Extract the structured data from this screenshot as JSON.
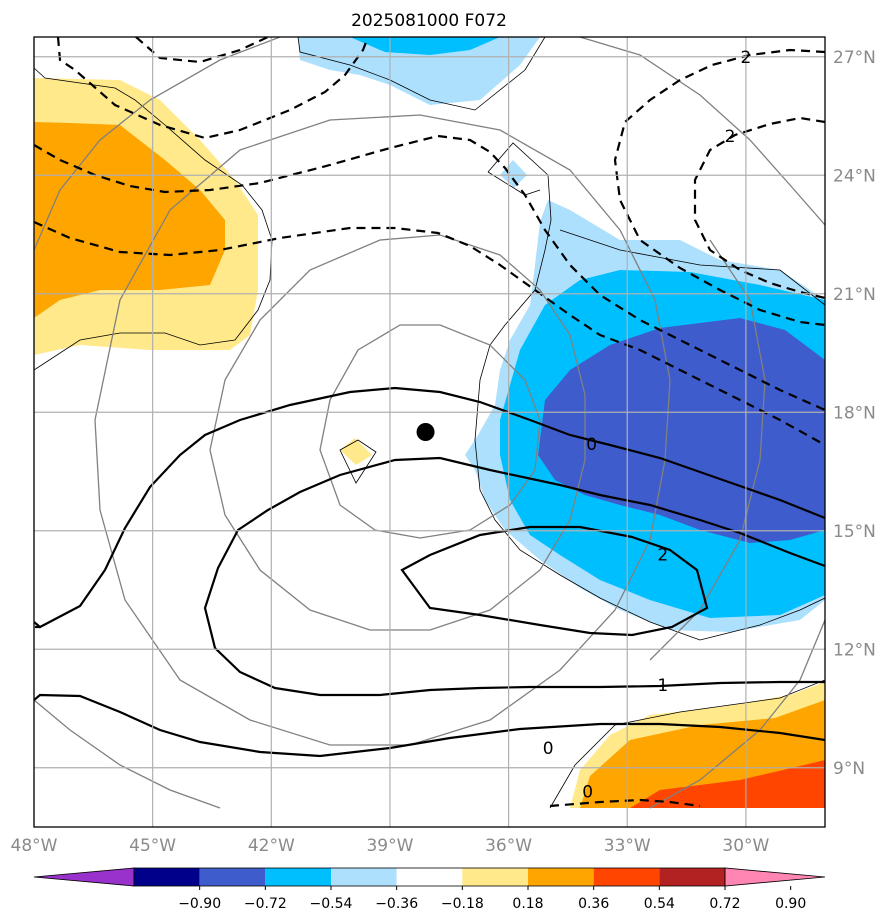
{
  "chart_data": {
    "type": "contour-map",
    "title": "2025081000 F072",
    "map": {
      "lon_range": [
        -48,
        -28
      ],
      "lat_range": [
        7.5,
        27.5
      ],
      "lon_ticks": [
        {
          "value": -48,
          "label": "48°W"
        },
        {
          "value": -45,
          "label": "45°W"
        },
        {
          "value": -42,
          "label": "42°W"
        },
        {
          "value": -39,
          "label": "39°W"
        },
        {
          "value": -36,
          "label": "36°W"
        },
        {
          "value": -33,
          "label": "33°W"
        },
        {
          "value": -30,
          "label": "30°W"
        }
      ],
      "lat_ticks": [
        {
          "value": 9,
          "label": "9°N"
        },
        {
          "value": 12,
          "label": "12°N"
        },
        {
          "value": 15,
          "label": "15°N"
        },
        {
          "value": 18,
          "label": "18°N"
        },
        {
          "value": 21,
          "label": "21°N"
        },
        {
          "value": 24,
          "label": "24°N"
        },
        {
          "value": 27,
          "label": "27°N"
        }
      ],
      "grid": true,
      "center_marker": {
        "lon": -38.1,
        "lat": 17.5
      }
    },
    "filled_field": {
      "regions": [
        {
          "level": "0.18 to 0.36",
          "color": "#ffe98a"
        },
        {
          "level": "0.36 to 0.54",
          "color": "#ffa500"
        },
        {
          "level": "0.54 to 0.72",
          "color": "#ff4500"
        },
        {
          "level": "-0.36 to -0.18",
          "color": "#ade0fc"
        },
        {
          "level": "-0.54 to -0.36",
          "color": "#00bfff"
        },
        {
          "level": "-0.72 to -0.54",
          "color": "#3f5ccc"
        }
      ]
    },
    "contour_labels": [
      {
        "text": "2",
        "lon": -30.0,
        "lat": 27.0
      },
      {
        "text": "2",
        "lon": -30.4,
        "lat": 25.0
      },
      {
        "text": "0",
        "lon": -33.9,
        "lat": 17.2
      },
      {
        "text": "2",
        "lon": -32.1,
        "lat": 14.4
      },
      {
        "text": "1",
        "lon": -32.1,
        "lat": 11.1
      },
      {
        "text": "0",
        "lon": -35.0,
        "lat": 9.5
      },
      {
        "text": "0",
        "lon": -34.0,
        "lat": 8.4
      }
    ],
    "colorbar": {
      "colors": [
        "#9932cc",
        "#00008b",
        "#3f5ccc",
        "#00bfff",
        "#ade0fc",
        "#ffffff",
        "#ffe98a",
        "#ffa500",
        "#ff4500",
        "#b22222",
        "#ff85b3"
      ],
      "labels": [
        "−0.90",
        "−0.72",
        "−0.54",
        "−0.36",
        "−0.18",
        "0.18",
        "0.36",
        "0.54",
        "0.72",
        "0.90"
      ]
    }
  }
}
